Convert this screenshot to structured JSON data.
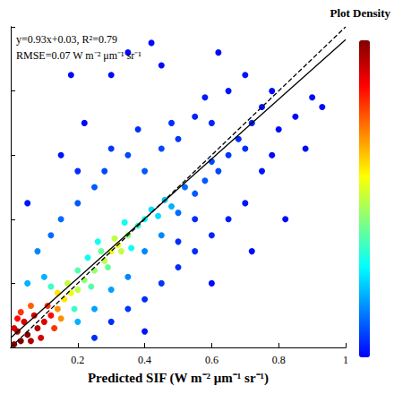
{
  "chart_data": {
    "type": "scatter",
    "x_label": "Predicted SIF (W m⁻² μm⁻¹ sr⁻¹)",
    "colorbar_title": "Plot Density",
    "annotations": [
      "y=0.93x+0.03, R²=0.79",
      "RMSE=0.07 W m⁻² μm⁻¹ sr⁻¹"
    ],
    "xlim": [
      0,
      1
    ],
    "ylim": [
      0,
      1
    ],
    "xticks": [
      0.2,
      0.4,
      0.6,
      0.8,
      1
    ],
    "yticks": [
      0,
      0.2,
      0.4,
      0.6,
      0.8,
      1
    ],
    "tick_labels": "x",
    "grid": false,
    "density_range": [
      0,
      1
    ],
    "points": [
      [
        0.3,
        0.85,
        0.01
      ],
      [
        0.35,
        0.92,
        0.01
      ],
      [
        0.42,
        0.95,
        0.01
      ],
      [
        0.45,
        0.88,
        0.01
      ],
      [
        0.22,
        0.7,
        0.01
      ],
      [
        0.18,
        0.85,
        0.01
      ],
      [
        0.62,
        0.92,
        0.01
      ],
      [
        0.78,
        0.6,
        0.01
      ],
      [
        0.8,
        0.68,
        0.01
      ],
      [
        0.85,
        0.72,
        0.01
      ],
      [
        0.88,
        0.62,
        0.01
      ],
      [
        0.9,
        0.78,
        0.01
      ],
      [
        0.93,
        0.75,
        0.01
      ],
      [
        0.82,
        0.4,
        0.01
      ],
      [
        0.6,
        0.2,
        0.01
      ],
      [
        0.72,
        0.3,
        0.01
      ],
      [
        0.78,
        0.8,
        0.01
      ],
      [
        0.15,
        0.6,
        0.02
      ],
      [
        0.05,
        0.45,
        0.02
      ],
      [
        0.65,
        0.8,
        0.02
      ],
      [
        0.7,
        0.85,
        0.02
      ],
      [
        0.7,
        0.45,
        0.02
      ],
      [
        0.75,
        0.55,
        0.02
      ],
      [
        0.4,
        0.05,
        0.02
      ],
      [
        0.75,
        0.75,
        0.02
      ],
      [
        0.58,
        0.78,
        0.03
      ],
      [
        0.65,
        0.4,
        0.03
      ],
      [
        0.55,
        0.72,
        0.04
      ],
      [
        0.6,
        0.7,
        0.04
      ],
      [
        0.6,
        0.35,
        0.04
      ],
      [
        0.72,
        0.7,
        0.04
      ],
      [
        0.3,
        0.08,
        0.05
      ],
      [
        0.4,
        0.15,
        0.05
      ],
      [
        0.5,
        0.25,
        0.05
      ],
      [
        0.55,
        0.3,
        0.05
      ],
      [
        0.25,
        0.03,
        0.05
      ],
      [
        0.55,
        0.4,
        0.05
      ],
      [
        0.5,
        0.33,
        0.05
      ],
      [
        0.38,
        0.68,
        0.05
      ],
      [
        0.48,
        0.7,
        0.05
      ],
      [
        0.2,
        0.55,
        0.05
      ],
      [
        0.68,
        0.65,
        0.05
      ],
      [
        0.7,
        0.62,
        0.05
      ],
      [
        0.35,
        0.12,
        0.06
      ],
      [
        0.45,
        0.2,
        0.06
      ],
      [
        0.3,
        0.62,
        0.06
      ],
      [
        0.5,
        0.65,
        0.06
      ],
      [
        0.65,
        0.6,
        0.06
      ],
      [
        0.28,
        0.55,
        0.08
      ],
      [
        0.35,
        0.6,
        0.08
      ],
      [
        0.45,
        0.62,
        0.08
      ],
      [
        0.6,
        0.58,
        0.08
      ],
      [
        0.62,
        0.55,
        0.08
      ],
      [
        0.2,
        0.45,
        0.1
      ],
      [
        0.25,
        0.5,
        0.1
      ],
      [
        0.4,
        0.55,
        0.1
      ],
      [
        0.55,
        0.48,
        0.1
      ],
      [
        0.58,
        0.52,
        0.1
      ],
      [
        0.12,
        0.35,
        0.12
      ],
      [
        0.15,
        0.4,
        0.12
      ],
      [
        0.5,
        0.42,
        0.12
      ],
      [
        0.52,
        0.5,
        0.12
      ],
      [
        0.08,
        0.3,
        0.15
      ],
      [
        0.35,
        0.22,
        0.15
      ],
      [
        0.4,
        0.3,
        0.15
      ],
      [
        0.45,
        0.35,
        0.15
      ],
      [
        0.25,
        0.12,
        0.18
      ],
      [
        0.3,
        0.18,
        0.18
      ],
      [
        0.1,
        0.22,
        0.2
      ],
      [
        0.05,
        0.2,
        0.2
      ],
      [
        0.2,
        0.08,
        0.2
      ],
      [
        0.48,
        0.44,
        0.2
      ],
      [
        0.46,
        0.46,
        0.22
      ],
      [
        0.42,
        0.43,
        0.25
      ],
      [
        0.44,
        0.41,
        0.25
      ],
      [
        0.4,
        0.4,
        0.3
      ],
      [
        0.36,
        0.31,
        0.3
      ],
      [
        0.34,
        0.39,
        0.3
      ],
      [
        0.26,
        0.33,
        0.3
      ],
      [
        0.23,
        0.28,
        0.3
      ],
      [
        0.19,
        0.12,
        0.35
      ],
      [
        0.12,
        0.19,
        0.35
      ],
      [
        0.38,
        0.38,
        0.35
      ],
      [
        0.2,
        0.24,
        0.38
      ],
      [
        0.24,
        0.19,
        0.38
      ],
      [
        0.27,
        0.3,
        0.4
      ],
      [
        0.29,
        0.25,
        0.4
      ],
      [
        0.22,
        0.21,
        0.45
      ],
      [
        0.25,
        0.24,
        0.45
      ],
      [
        0.35,
        0.35,
        0.45
      ],
      [
        0.2,
        0.18,
        0.5
      ],
      [
        0.17,
        0.2,
        0.5
      ],
      [
        0.28,
        0.27,
        0.5
      ],
      [
        0.33,
        0.3,
        0.5
      ],
      [
        0.31,
        0.34,
        0.5
      ],
      [
        0.18,
        0.17,
        0.55
      ],
      [
        0.3,
        0.3,
        0.55
      ],
      [
        0.32,
        0.32,
        0.55
      ],
      [
        0.16,
        0.15,
        0.6
      ],
      [
        0.14,
        0.17,
        0.6
      ],
      [
        0.14,
        0.12,
        0.7
      ],
      [
        0.15,
        0.09,
        0.7
      ],
      [
        0.06,
        0.13,
        0.75
      ],
      [
        0.03,
        0.11,
        0.8
      ],
      [
        0.13,
        0.06,
        0.8
      ],
      [
        0.11,
        0.13,
        0.8
      ],
      [
        0.12,
        0.1,
        0.85
      ],
      [
        0.02,
        0.09,
        0.85
      ],
      [
        0.04,
        0.08,
        0.9
      ],
      [
        0.1,
        0.08,
        0.9
      ],
      [
        0.07,
        0.1,
        0.9
      ],
      [
        0.01,
        0.06,
        0.9
      ],
      [
        0.09,
        0.03,
        0.9
      ],
      [
        0.02,
        0.05,
        0.95
      ],
      [
        0.06,
        0.02,
        0.95
      ],
      [
        0.08,
        0.06,
        0.95
      ],
      [
        0.01,
        0.01,
        1
      ],
      [
        0.03,
        0.02,
        1
      ],
      [
        0.05,
        0.04,
        1
      ]
    ],
    "lines": [
      {
        "x": [
          0,
          1
        ],
        "values": [
          0,
          1
        ],
        "line_style": "dashed",
        "color": "#000000"
      },
      {
        "x": [
          0,
          1
        ],
        "values": [
          0.03,
          0.96
        ],
        "line_style": "solid",
        "color": "#000000"
      }
    ]
  }
}
